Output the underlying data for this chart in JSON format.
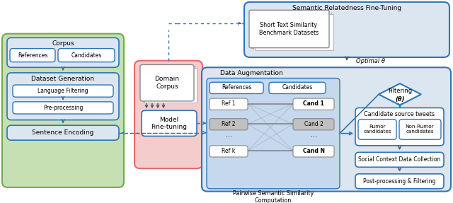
{
  "bg_color": "#ffffff",
  "green_bg": "#c6e0b4",
  "green_border": "#70ad47",
  "pink_bg": "#f4cccc",
  "pink_border": "#e06c6c",
  "blue_bg_light": "#dce6f1",
  "blue_border": "#2e75b6",
  "box_fill_white": "#ffffff",
  "box_fill_blue": "#dae3f3",
  "box_fill_gray": "#d9d9d9",
  "arrow_color": "#2e75b6",
  "arrow_dark": "#404040",
  "text_dark": "#000000",
  "title_semrel": "Semantic Relatedness Fine-Tuning",
  "title_dataaug": "Data Augmentation",
  "lbl_corpus": "Corpus",
  "lbl_references": "References",
  "lbl_candidates": "Candidates",
  "lbl_dataset_gen": "Dataset Generation",
  "lbl_lang_filter": "Language Filtering",
  "lbl_preproc": "Pre-processing",
  "lbl_sent_enc": "Sentence Encoding",
  "lbl_domain_corpus": "Domain\nCorpus",
  "lbl_model_ft": "Model\nFine-tuning",
  "lbl_short_text": "Short Text Similarity\nBenchmark Datasets",
  "lbl_optimal": "Optimal θ",
  "lbl_pairwise": "Pairwise Semantic Similarity\nComputation",
  "lbl_filtering": "Filtering",
  "lbl_theta": "(θ)",
  "lbl_cand_source": "Candidate source tweets",
  "lbl_rumor": "Rumor\ncandidates",
  "lbl_nonrumor": "Non-Rumor\ncandidates",
  "lbl_social": "Social Context Data Collection",
  "lbl_postproc": "Post-processing & Filtering",
  "lbl_ref1": "Ref 1",
  "lbl_ref2": "Ref 2",
  "lbl_refk": "Ref k",
  "lbl_cand1": "Cand 1",
  "lbl_cand2": "Cand 2",
  "lbl_candn": "Cand N",
  "lbl_refs_h": "References",
  "lbl_cands_h": "Candidates",
  "lbl_dots": "..."
}
